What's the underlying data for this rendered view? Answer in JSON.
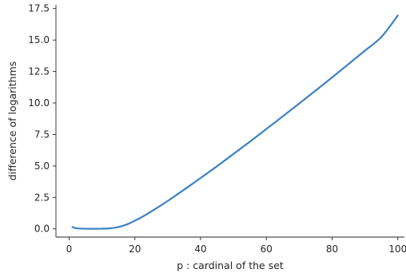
{
  "chart_data": {
    "type": "line",
    "title": "",
    "xlabel": "p : cardinal of the set",
    "ylabel": "difference of logarithms",
    "xlim": [
      -4,
      102
    ],
    "ylim": [
      -0.65,
      17.8
    ],
    "xticks": [
      0,
      20,
      40,
      60,
      80,
      100
    ],
    "xtick_labels": [
      "0",
      "20",
      "40",
      "60",
      "80",
      "100"
    ],
    "yticks": [
      0.0,
      2.5,
      5.0,
      7.5,
      10.0,
      12.5,
      15.0,
      17.5
    ],
    "ytick_labels": [
      "0.0",
      "2.5",
      "5.0",
      "7.5",
      "10.0",
      "12.5",
      "15.0",
      "17.5"
    ],
    "grid": false,
    "colors": {
      "line": "#3b82c4",
      "axis": "#262626"
    },
    "series": [
      {
        "x": [
          1,
          2,
          4,
          6,
          8,
          10,
          12,
          14,
          16,
          18,
          20,
          22,
          25,
          30,
          35,
          40,
          45,
          50,
          55,
          60,
          65,
          70,
          75,
          80,
          85,
          90,
          95,
          100
        ],
        "y": [
          0.15,
          0.06,
          0.02,
          0.01,
          0.01,
          0.02,
          0.04,
          0.1,
          0.22,
          0.4,
          0.65,
          0.92,
          1.38,
          2.22,
          3.12,
          4.04,
          4.98,
          5.95,
          6.93,
          7.93,
          8.94,
          9.96,
          10.99,
          12.03,
          13.09,
          14.16,
          15.25,
          16.95
        ]
      }
    ]
  }
}
